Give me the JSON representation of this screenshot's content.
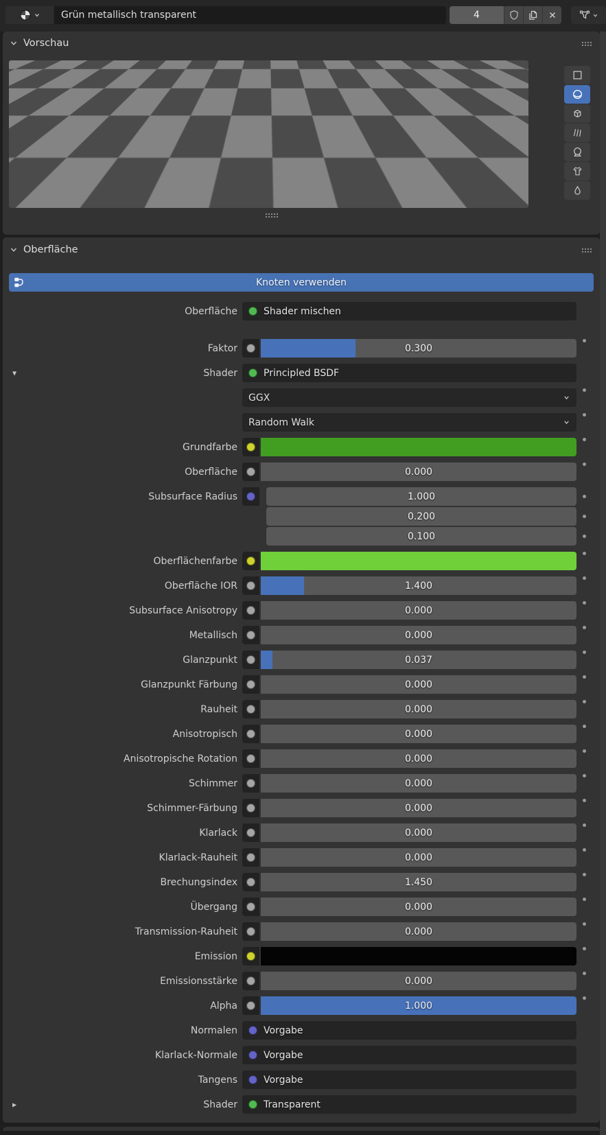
{
  "topbar": {
    "material_name": "Grün metallisch transparent",
    "users_count": "4",
    "icons": [
      "material-sphere",
      "dropdown-chevron",
      "shield-fake-user",
      "duplicate",
      "unlink-x",
      "filter-funnel"
    ]
  },
  "preview": {
    "types": [
      "flat",
      "sphere",
      "cube",
      "hair",
      "shaderball",
      "cloth",
      "fluid"
    ],
    "selected": "sphere"
  },
  "panels": {
    "vorschau": {
      "title": "Vorschau"
    },
    "oberflaeche": {
      "title": "Oberfläche",
      "use_nodes_label": "Knoten verwenden",
      "rows": [
        {
          "label": "Oberfläche",
          "type": "link",
          "socket": "shader",
          "value": "Shader mischen"
        },
        {
          "label": "Faktor",
          "type": "slider",
          "socket": "float",
          "value": "0.300",
          "fill": 0.3,
          "gap": "large"
        },
        {
          "label": "Shader",
          "type": "link",
          "socket": "shader",
          "value": "Principled BSDF",
          "expander": "down"
        },
        {
          "label": "",
          "type": "dropdown",
          "value": "GGX"
        },
        {
          "label": "",
          "type": "dropdown",
          "value": "Random Walk"
        },
        {
          "label": "Grundfarbe",
          "type": "color",
          "socket": "color",
          "color": "#429e20"
        },
        {
          "label": "Oberfläche",
          "type": "slider",
          "socket": "float",
          "value": "0.000",
          "fill": 0
        },
        {
          "label": "Subsurface Radius",
          "type": "vector",
          "socket": "vector",
          "values": [
            "1.000",
            "0.200",
            "0.100"
          ]
        },
        {
          "label": "Oberflächenfarbe",
          "type": "color",
          "socket": "color",
          "color": "#70d03a"
        },
        {
          "label": "Oberfläche IOR",
          "type": "slider",
          "socket": "float",
          "value": "1.400",
          "fill": 0.137
        },
        {
          "label": "Subsurface Anisotropy",
          "type": "slider",
          "socket": "float",
          "value": "0.000",
          "fill": 0
        },
        {
          "label": "Metallisch",
          "type": "slider",
          "socket": "float",
          "value": "0.000",
          "fill": 0
        },
        {
          "label": "Glanzpunkt",
          "type": "slider",
          "socket": "float",
          "value": "0.037",
          "fill": 0.037
        },
        {
          "label": "Glanzpunkt Färbung",
          "type": "slider",
          "socket": "float",
          "value": "0.000",
          "fill": 0
        },
        {
          "label": "Rauheit",
          "type": "slider",
          "socket": "float",
          "value": "0.000",
          "fill": 0
        },
        {
          "label": "Anisotropisch",
          "type": "slider",
          "socket": "float",
          "value": "0.000",
          "fill": 0
        },
        {
          "label": "Anisotropische Rotation",
          "type": "slider",
          "socket": "float",
          "value": "0.000",
          "fill": 0
        },
        {
          "label": "Schimmer",
          "type": "slider",
          "socket": "float",
          "value": "0.000",
          "fill": 0
        },
        {
          "label": "Schimmer-Färbung",
          "type": "slider",
          "socket": "float",
          "value": "0.000",
          "fill": 0
        },
        {
          "label": "Klarlack",
          "type": "slider",
          "socket": "float",
          "value": "0.000",
          "fill": 0
        },
        {
          "label": "Klarlack-Rauheit",
          "type": "slider",
          "socket": "float",
          "value": "0.000",
          "fill": 0
        },
        {
          "label": "Brechungsindex",
          "type": "slider",
          "socket": "float",
          "value": "1.450",
          "fill": 0
        },
        {
          "label": "Übergang",
          "type": "slider",
          "socket": "float",
          "value": "0.000",
          "fill": 0
        },
        {
          "label": "Transmission-Rauheit",
          "type": "slider",
          "socket": "float",
          "value": "0.000",
          "fill": 0
        },
        {
          "label": "Emission",
          "type": "color",
          "socket": "color",
          "color": "#040404"
        },
        {
          "label": "Emissionsstärke",
          "type": "slider",
          "socket": "float",
          "value": "0.000",
          "fill": 0
        },
        {
          "label": "Alpha",
          "type": "slider",
          "socket": "float",
          "value": "1.000",
          "fill": 1
        },
        {
          "label": "Normalen",
          "type": "link",
          "socket": "vector",
          "value": "Vorgabe"
        },
        {
          "label": "Klarlack-Normale",
          "type": "link",
          "socket": "vector",
          "value": "Vorgabe"
        },
        {
          "label": "Tangens",
          "type": "link",
          "socket": "vector",
          "value": "Vorgabe"
        },
        {
          "label": "Shader",
          "type": "link",
          "socket": "shader",
          "value": "Transparent",
          "expander": "right"
        }
      ]
    }
  },
  "colors": {
    "accent_blue": "#4772b9",
    "use_nodes_blue": "#4772b4",
    "sockets": {
      "float": "#a5a5a5",
      "color": "#cdd22e",
      "vector": "#6463c7",
      "shader": "#51b951"
    }
  }
}
